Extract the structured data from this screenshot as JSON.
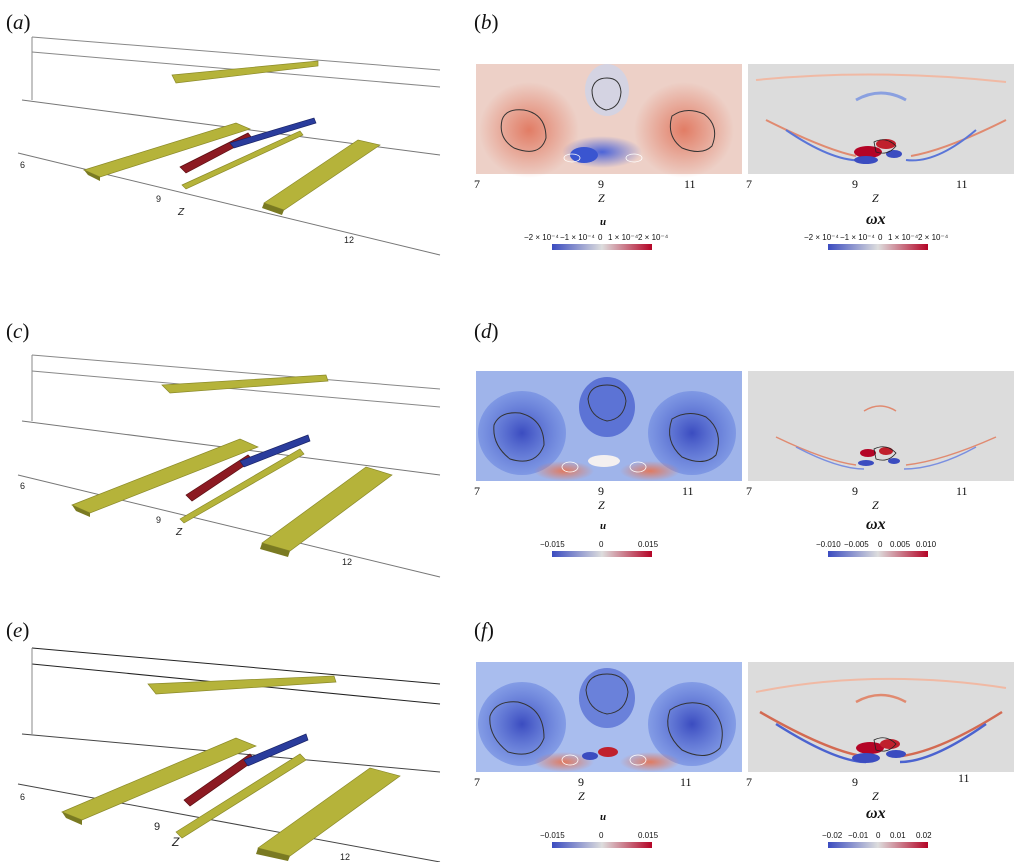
{
  "panels": [
    {
      "left_label": "a",
      "right_label": "b",
      "z3d_ticks": [
        "6",
        "9",
        "12"
      ],
      "z3d_title": "Z",
      "left_field": "u",
      "right_field": "ωx",
      "left_z_ticks": [
        "7",
        "9",
        "11"
      ],
      "right_z_ticks": [
        "7",
        "9",
        "11"
      ],
      "z_title": "Z",
      "left_cbar": [
        "−2 × 10⁻⁴",
        "−1 × 10⁻⁴",
        "0",
        "1 × 10⁻⁴",
        "2 × 10⁻⁴"
      ],
      "right_cbar": [
        "−2 × 10⁻⁴",
        "−1 × 10⁻⁴",
        "0",
        "1 × 10⁻⁴",
        "2 × 10⁻⁴"
      ],
      "left_tone": "red"
    },
    {
      "left_label": "c",
      "right_label": "d",
      "z3d_ticks": [
        "6",
        "9",
        "12"
      ],
      "z3d_title": "Z",
      "left_field": "u",
      "right_field": "ωx",
      "left_z_ticks": [
        "7",
        "9",
        "11"
      ],
      "right_z_ticks": [
        "7",
        "9",
        "11"
      ],
      "z_title": "Z",
      "left_cbar": [
        "−0.015",
        "0",
        "0.015"
      ],
      "right_cbar": [
        "−0.010",
        "−0.005",
        "0",
        "0.005",
        "0.010"
      ],
      "left_tone": "blue"
    },
    {
      "left_label": "e",
      "right_label": "f",
      "z3d_ticks": [
        "6",
        "9",
        "12"
      ],
      "z3d_title": "Z",
      "left_field": "u",
      "right_field": "ωx",
      "left_z_ticks": [
        "7",
        "9",
        "11"
      ],
      "right_z_ticks": [
        "7",
        "9",
        "11"
      ],
      "z_title": "Z",
      "left_cbar": [
        "−0.015",
        "0",
        "0.015"
      ],
      "right_cbar": [
        "−0.02",
        "−0.01",
        "0",
        "0.01",
        "0.02"
      ],
      "left_tone": "blue"
    }
  ],
  "colors": {
    "surface_yellow": "#b5b33a",
    "surface_red": "#8c1a22",
    "surface_blue": "#2a3c9c",
    "cmap_blue": "#3b4cc0",
    "cmap_red": "#b40426",
    "field_background": "#dcdcdc"
  }
}
